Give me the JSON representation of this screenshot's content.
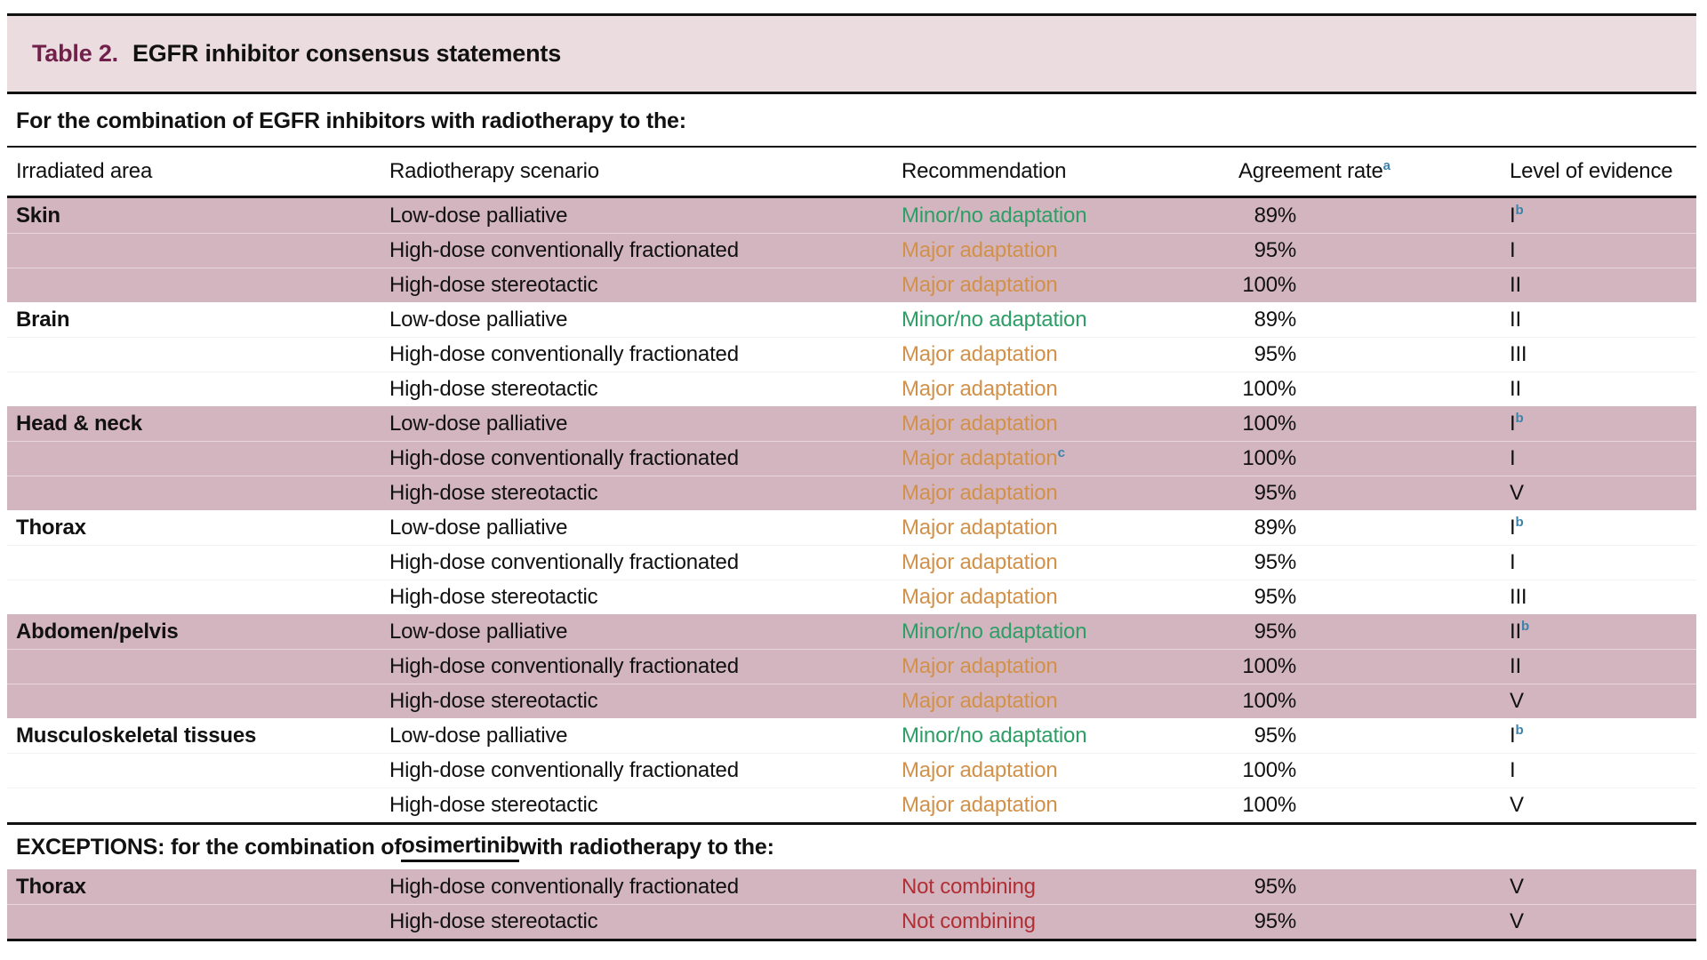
{
  "title": {
    "label": "Table 2.",
    "text": "EGFR inhibitor consensus statements"
  },
  "subtitle": "For the combination of EGFR inhibitors with radiotherapy to the:",
  "table": {
    "headers": [
      "Irradiated area",
      "Radiotherapy scenario",
      "Recommendation",
      "Agreement rate",
      "Level of evidence"
    ],
    "agreement_sup": "a",
    "groups": [
      {
        "area": "Skin",
        "shaded": true,
        "rows": [
          {
            "scenario": "Low-dose palliative",
            "recommendation": "Minor/no adaptation",
            "rec_type": "minor",
            "rec_sup": "",
            "agreement": "89%",
            "evidence": "I",
            "evidence_sup": "b"
          },
          {
            "scenario": "High-dose conventionally fractionated",
            "recommendation": "Major adaptation",
            "rec_type": "major",
            "rec_sup": "",
            "agreement": "95%",
            "evidence": "I",
            "evidence_sup": ""
          },
          {
            "scenario": "High-dose stereotactic",
            "recommendation": "Major adaptation",
            "rec_type": "major",
            "rec_sup": "",
            "agreement": "100%",
            "evidence": "II",
            "evidence_sup": ""
          }
        ]
      },
      {
        "area": "Brain",
        "shaded": false,
        "rows": [
          {
            "scenario": "Low-dose palliative",
            "recommendation": "Minor/no adaptation",
            "rec_type": "minor",
            "rec_sup": "",
            "agreement": "89%",
            "evidence": "II",
            "evidence_sup": ""
          },
          {
            "scenario": "High-dose conventionally fractionated",
            "recommendation": "Major adaptation",
            "rec_type": "major",
            "rec_sup": "",
            "agreement": "95%",
            "evidence": "III",
            "evidence_sup": ""
          },
          {
            "scenario": "High-dose stereotactic",
            "recommendation": "Major adaptation",
            "rec_type": "major",
            "rec_sup": "",
            "agreement": "100%",
            "evidence": "II",
            "evidence_sup": ""
          }
        ]
      },
      {
        "area": "Head & neck",
        "shaded": true,
        "rows": [
          {
            "scenario": "Low-dose palliative",
            "recommendation": "Major adaptation",
            "rec_type": "major",
            "rec_sup": "",
            "agreement": "100%",
            "evidence": "I",
            "evidence_sup": "b"
          },
          {
            "scenario": "High-dose conventionally fractionated",
            "recommendation": "Major adaptation",
            "rec_type": "major",
            "rec_sup": "c",
            "agreement": "100%",
            "evidence": "I",
            "evidence_sup": ""
          },
          {
            "scenario": "High-dose stereotactic",
            "recommendation": "Major adaptation",
            "rec_type": "major",
            "rec_sup": "",
            "agreement": "95%",
            "evidence": "V",
            "evidence_sup": ""
          }
        ]
      },
      {
        "area": "Thorax",
        "shaded": false,
        "rows": [
          {
            "scenario": "Low-dose palliative",
            "recommendation": "Major adaptation",
            "rec_type": "major",
            "rec_sup": "",
            "agreement": "89%",
            "evidence": "I",
            "evidence_sup": "b"
          },
          {
            "scenario": "High-dose conventionally fractionated",
            "recommendation": "Major adaptation",
            "rec_type": "major",
            "rec_sup": "",
            "agreement": "95%",
            "evidence": "I",
            "evidence_sup": ""
          },
          {
            "scenario": "High-dose stereotactic",
            "recommendation": "Major adaptation",
            "rec_type": "major",
            "rec_sup": "",
            "agreement": "95%",
            "evidence": "III",
            "evidence_sup": ""
          }
        ]
      },
      {
        "area": "Abdomen/pelvis",
        "shaded": true,
        "rows": [
          {
            "scenario": "Low-dose palliative",
            "recommendation": "Minor/no adaptation",
            "rec_type": "minor",
            "rec_sup": "",
            "agreement": "95%",
            "evidence": "II",
            "evidence_sup": "b"
          },
          {
            "scenario": "High-dose conventionally fractionated",
            "recommendation": "Major adaptation",
            "rec_type": "major",
            "rec_sup": "",
            "agreement": "100%",
            "evidence": "II",
            "evidence_sup": ""
          },
          {
            "scenario": "High-dose stereotactic",
            "recommendation": "Major adaptation",
            "rec_type": "major",
            "rec_sup": "",
            "agreement": "100%",
            "evidence": "V",
            "evidence_sup": ""
          }
        ]
      },
      {
        "area": "Musculoskeletal tissues",
        "shaded": false,
        "rows": [
          {
            "scenario": "Low-dose palliative",
            "recommendation": "Minor/no adaptation",
            "rec_type": "minor",
            "rec_sup": "",
            "agreement": "95%",
            "evidence": "I",
            "evidence_sup": "b"
          },
          {
            "scenario": "High-dose conventionally fractionated",
            "recommendation": "Major adaptation",
            "rec_type": "major",
            "rec_sup": "",
            "agreement": "100%",
            "evidence": "I",
            "evidence_sup": ""
          },
          {
            "scenario": "High-dose stereotactic",
            "recommendation": "Major adaptation",
            "rec_type": "major",
            "rec_sup": "",
            "agreement": "100%",
            "evidence": "V",
            "evidence_sup": ""
          }
        ]
      }
    ]
  },
  "exceptions": {
    "heading_prefix": "EXCEPTIONS: for the combination of ",
    "heading_drug": "osimertinib",
    "heading_suffix": " with radiotherapy to the:",
    "groups": [
      {
        "area": "Thorax",
        "shaded": true,
        "rows": [
          {
            "scenario": "High-dose conventionally fractionated",
            "recommendation": "Not combining",
            "rec_type": "not_combining",
            "rec_sup": "",
            "agreement": "95%",
            "evidence": "V",
            "evidence_sup": ""
          },
          {
            "scenario": "High-dose stereotactic",
            "recommendation": "Not combining",
            "rec_type": "not_combining",
            "rec_sup": "",
            "agreement": "95%",
            "evidence": "V",
            "evidence_sup": ""
          }
        ]
      }
    ]
  },
  "colors": {
    "title_maroon": "#70204a",
    "title_bar_pink": "#ebdce0",
    "row_band_pink": "#d3b5bf",
    "recommendation_green": "#2d9e66",
    "recommendation_orange": "#d2914a",
    "recommendation_red": "#b02f35",
    "footnote_blue": "#3b83ab"
  }
}
